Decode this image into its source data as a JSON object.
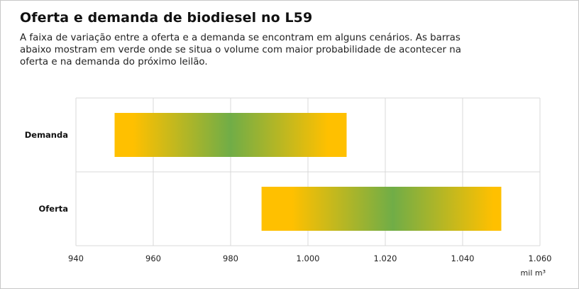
{
  "header": {
    "title": "Oferta e demanda de biodiesel no L59",
    "subtitle": "A faixa de variação entre a oferta e a demanda se encontram em alguns cenários. As barras abaixo mostram em verde onde se situa o volume com maior probabilidade de acontecer na oferta e na demanda do próximo leilão."
  },
  "colors": {
    "range_edge": "#ffc000",
    "range_center": "#70ad47",
    "grid": "#d9d9d9"
  },
  "chart_data": {
    "type": "bar",
    "orientation": "horizontal",
    "title": "Oferta e demanda de biodiesel no L59",
    "xlabel": "mil m³",
    "ylabel": "",
    "xlim": [
      940,
      1060
    ],
    "grid": true,
    "legend": "none",
    "x_ticks": [
      940,
      960,
      980,
      1000,
      1020,
      1040,
      1060
    ],
    "x_tick_labels": [
      "940",
      "960",
      "980",
      "1.000",
      "1.020",
      "1.040",
      "1.060"
    ],
    "categories": [
      "Demanda",
      "Oferta"
    ],
    "series": [
      {
        "ranges": [
          {
            "category": "Demanda",
            "min": 950,
            "max": 1010,
            "most_likely": 980
          },
          {
            "category": "Oferta",
            "min": 988,
            "max": 1050,
            "most_likely": 1022
          }
        ]
      }
    ]
  }
}
